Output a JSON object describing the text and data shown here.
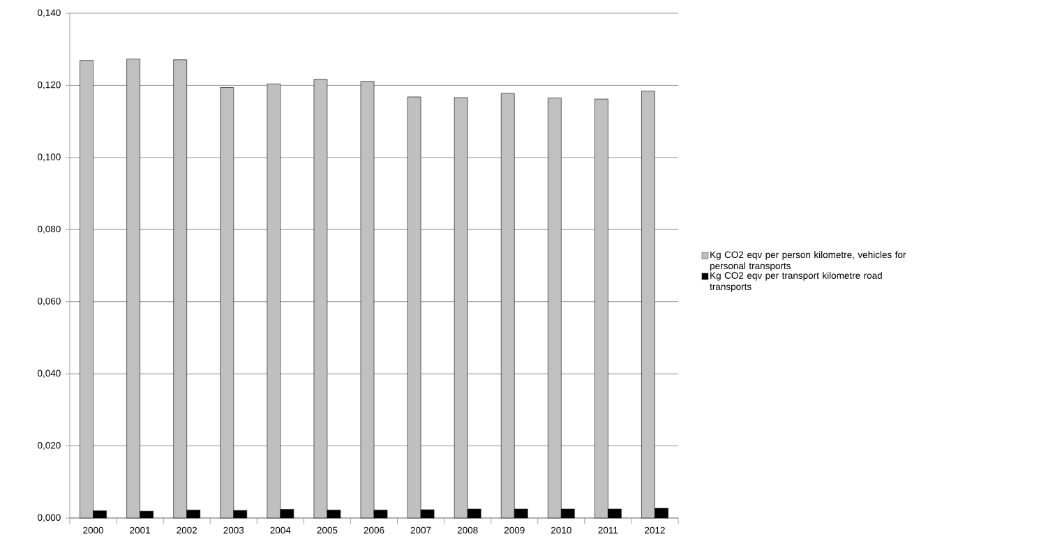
{
  "chart_data": {
    "type": "bar",
    "categories": [
      "2000",
      "2001",
      "2002",
      "2003",
      "2004",
      "2005",
      "2006",
      "2007",
      "2008",
      "2009",
      "2010",
      "2011",
      "2012"
    ],
    "series": [
      {
        "name": "Kg CO2 eqv per person kilometre, vehicles for personal transports",
        "color": "#c0c0c0",
        "values": [
          0.1269,
          0.1273,
          0.1271,
          0.1194,
          0.1204,
          0.1217,
          0.1211,
          0.1168,
          0.1166,
          0.1178,
          0.1165,
          0.1162,
          0.1184
        ]
      },
      {
        "name": "Kg CO2 eqv per transport kilometre road transports",
        "color": "#000000",
        "values": [
          0.002,
          0.0019,
          0.0022,
          0.0021,
          0.0024,
          0.0022,
          0.0022,
          0.0023,
          0.0025,
          0.0025,
          0.0025,
          0.0025,
          0.0027
        ]
      }
    ],
    "ylim": [
      0,
      0.14
    ],
    "yticks": [
      {
        "value": 0,
        "label": "0,000"
      },
      {
        "value": 0.02,
        "label": "0,020"
      },
      {
        "value": 0.04,
        "label": "0,040"
      },
      {
        "value": 0.06,
        "label": "0,060"
      },
      {
        "value": 0.08,
        "label": "0,080"
      },
      {
        "value": 0.1,
        "label": "0,100"
      },
      {
        "value": 0.12,
        "label": "0,120"
      },
      {
        "value": 0.14,
        "label": "0,140"
      }
    ],
    "grid": "y",
    "legend": "right"
  }
}
